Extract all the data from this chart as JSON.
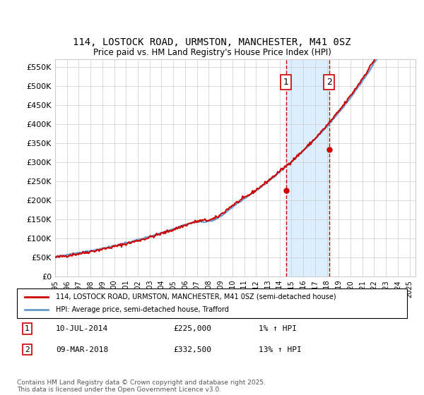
{
  "title": "114, LOSTOCK ROAD, URMSTON, MANCHESTER, M41 0SZ",
  "subtitle": "Price paid vs. HM Land Registry's House Price Index (HPI)",
  "ylabel_ticks": [
    0,
    50000,
    100000,
    150000,
    200000,
    250000,
    300000,
    350000,
    400000,
    450000,
    500000,
    550000
  ],
  "ylabel_labels": [
    "£0",
    "£50K",
    "£100K",
    "£150K",
    "£200K",
    "£250K",
    "£300K",
    "£350K",
    "£400K",
    "£450K",
    "£500K",
    "£550K"
  ],
  "ylim": [
    0,
    570000
  ],
  "xlim_start": 1995.0,
  "xlim_end": 2025.5,
  "purchase1_x": 2014.53,
  "purchase1_y": 225000,
  "purchase1_label": "1",
  "purchase2_x": 2018.19,
  "purchase2_y": 332500,
  "purchase2_label": "2",
  "legend_line1": "114, LOSTOCK ROAD, URMSTON, MANCHESTER, M41 0SZ (semi-detached house)",
  "legend_line2": "HPI: Average price, semi-detached house, Trafford",
  "annotation1": "1    10-JUL-2014    £225,000    1% ↑ HPI",
  "annotation2": "2    09-MAR-2018    £332,500    13% ↑ HPI",
  "footer": "Contains HM Land Registry data © Crown copyright and database right 2025.\nThis data is licensed under the Open Government Licence v3.0.",
  "red_color": "#cc0000",
  "blue_color": "#6699cc",
  "shade_color": "#ddeeff",
  "grid_color": "#cccccc",
  "background_color": "#ffffff"
}
